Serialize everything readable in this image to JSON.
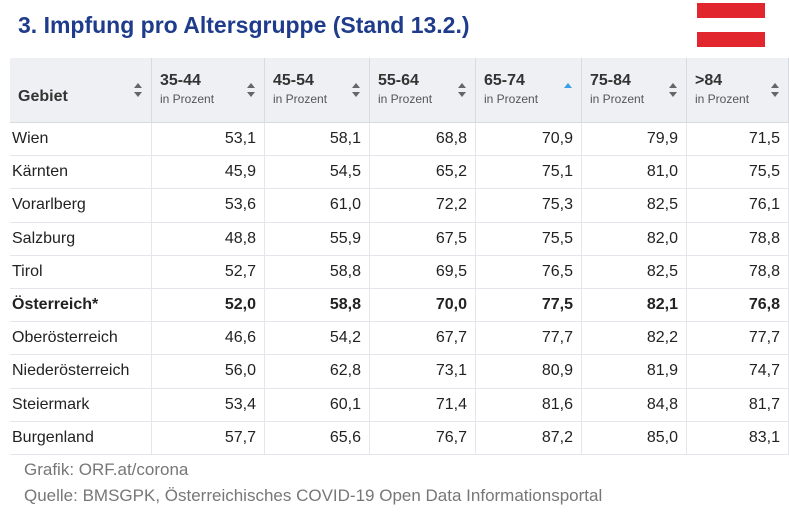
{
  "header": {
    "title": "3. Impfung pro Altersgruppe (Stand 13.2.)"
  },
  "table": {
    "columns": [
      {
        "label": "Gebiet"
      },
      {
        "label": "35-44",
        "sub": "in Prozent"
      },
      {
        "label": "45-54",
        "sub": "in Prozent"
      },
      {
        "label": "55-64",
        "sub": "in Prozent"
      },
      {
        "label": "65-74",
        "sub": "in Prozent"
      },
      {
        "label": "75-84",
        "sub": "in Prozent"
      },
      {
        "label": ">84",
        "sub": "in Prozent"
      }
    ],
    "rows": [
      [
        "Wien",
        "53,1",
        "58,1",
        "68,8",
        "70,9",
        "79,9",
        "71,5"
      ],
      [
        "Kärnten",
        "45,9",
        "54,5",
        "65,2",
        "75,1",
        "81,0",
        "75,5"
      ],
      [
        "Vorarlberg",
        "53,6",
        "61,0",
        "72,2",
        "75,3",
        "82,5",
        "76,1"
      ],
      [
        "Salzburg",
        "48,8",
        "55,9",
        "67,5",
        "75,5",
        "82,0",
        "78,8"
      ],
      [
        "Tirol",
        "52,7",
        "58,8",
        "69,5",
        "76,5",
        "82,5",
        "78,8"
      ],
      [
        "Österreich*",
        "52,0",
        "58,8",
        "70,0",
        "77,5",
        "82,1",
        "76,8"
      ],
      [
        "Oberösterreich",
        "46,6",
        "54,2",
        "67,7",
        "77,7",
        "82,2",
        "77,7"
      ],
      [
        "Niederösterreich",
        "56,0",
        "62,8",
        "73,1",
        "80,9",
        "81,9",
        "74,7"
      ],
      [
        "Steiermark",
        "53,4",
        "60,1",
        "71,4",
        "81,6",
        "84,8",
        "81,7"
      ],
      [
        "Burgenland",
        "57,7",
        "65,6",
        "76,7",
        "87,2",
        "85,0",
        "83,1"
      ]
    ]
  },
  "footer": {
    "lines": [
      "Grafik: ORF.at/corona",
      "Quelle: BMSGPK, Österreichisches COVID-19 Open Data Informationsportal"
    ]
  }
}
